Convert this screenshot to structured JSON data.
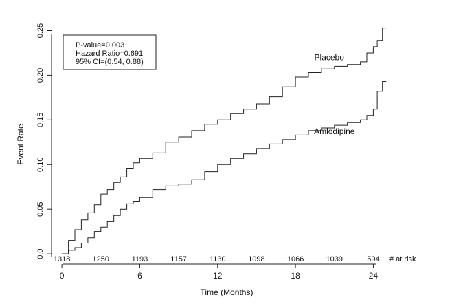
{
  "chart_data": {
    "type": "line",
    "step": true,
    "title": "",
    "xlabel": "Time (Months)",
    "ylabel": "Event Rate",
    "xlim": [
      -0.8,
      25.3
    ],
    "ylim": [
      -0.003,
      0.255
    ],
    "x_ticks": [
      0,
      6,
      12,
      18,
      24
    ],
    "x_tick_labels": [
      "0",
      "6",
      "12",
      "18",
      "24"
    ],
    "y_ticks": [
      0.0,
      0.05,
      0.1,
      0.15,
      0.2,
      0.25
    ],
    "y_tick_labels": [
      "0.0",
      "0.05",
      "0.10",
      "0.15",
      "0.20",
      "0.25"
    ],
    "grid": false,
    "stats_box": [
      "P-value=0.003",
      "Hazard Ratio=0.691",
      "95% CI=(0.54, 0.88)"
    ],
    "at_risk": {
      "label": "# at risk",
      "x": [
        0,
        3,
        6,
        9,
        12,
        15,
        18,
        21,
        24
      ],
      "values": [
        "1318",
        "1250",
        "1193",
        "1157",
        "1130",
        "1098",
        "1066",
        "1039",
        "594"
      ]
    },
    "series": [
      {
        "name": "Placebo",
        "label_at": [
          20.6,
          0.217
        ],
        "x": [
          0,
          0.5,
          1,
          1.5,
          2,
          2.5,
          3,
          3.5,
          4,
          4.5,
          5,
          5.5,
          6,
          7,
          8,
          9,
          10,
          11,
          12,
          13,
          14,
          15,
          16,
          17,
          18,
          19,
          20,
          21,
          22,
          23,
          23.5,
          24,
          24.3,
          24.7,
          25
        ],
        "values": [
          0.0,
          0.015,
          0.027,
          0.038,
          0.046,
          0.055,
          0.067,
          0.072,
          0.08,
          0.086,
          0.096,
          0.102,
          0.107,
          0.113,
          0.125,
          0.131,
          0.138,
          0.145,
          0.15,
          0.157,
          0.162,
          0.168,
          0.176,
          0.187,
          0.198,
          0.203,
          0.207,
          0.21,
          0.212,
          0.215,
          0.225,
          0.232,
          0.239,
          0.253,
          0.253
        ]
      },
      {
        "name": "Amlodipine",
        "label_at": [
          21.0,
          0.134
        ],
        "x": [
          0,
          0.5,
          1,
          1.5,
          2,
          2.5,
          3,
          3.5,
          4,
          4.5,
          5,
          5.5,
          6,
          7,
          8,
          9,
          10,
          11,
          12,
          13,
          14,
          15,
          16,
          17,
          18,
          19,
          20,
          21,
          22,
          23,
          23.5,
          24,
          24.3,
          24.7,
          25
        ],
        "values": [
          0.0,
          0.004,
          0.007,
          0.012,
          0.018,
          0.025,
          0.03,
          0.036,
          0.043,
          0.05,
          0.056,
          0.059,
          0.063,
          0.072,
          0.076,
          0.078,
          0.083,
          0.092,
          0.1,
          0.107,
          0.112,
          0.118,
          0.123,
          0.128,
          0.133,
          0.138,
          0.141,
          0.144,
          0.147,
          0.15,
          0.155,
          0.162,
          0.182,
          0.193,
          0.193
        ]
      }
    ]
  }
}
